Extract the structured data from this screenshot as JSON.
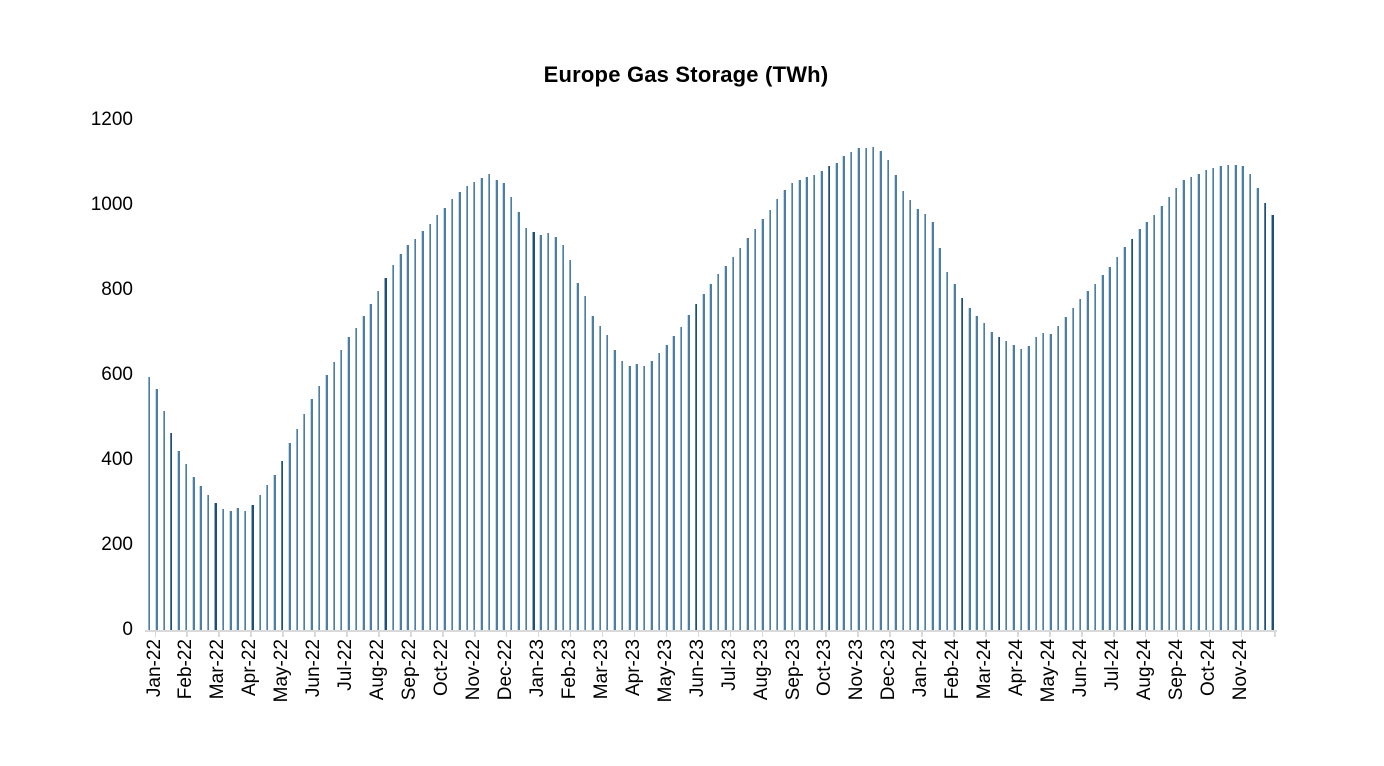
{
  "chart_data": {
    "type": "bar",
    "title": "Europe Gas Storage (TWh)",
    "unit": "TWh",
    "frequency": "weekly",
    "grid": "off",
    "legend": "none",
    "ylim": [
      0,
      1200
    ],
    "y_ticks": [
      0,
      200,
      400,
      600,
      800,
      1000,
      1200
    ],
    "x_tick_labels": [
      "Jan-22",
      "Feb-22",
      "Mar-22",
      "Apr-22",
      "May-22",
      "Jun-22",
      "Jul-22",
      "Aug-22",
      "Sep-22",
      "Oct-22",
      "Nov-22",
      "Dec-22",
      "Jan-23",
      "Feb-23",
      "Mar-23",
      "Apr-23",
      "May-23",
      "Jun-23",
      "Jul-23",
      "Aug-23",
      "Sep-23",
      "Oct-23",
      "Nov-23",
      "Dec-23",
      "Jan-24",
      "Feb-24",
      "Mar-24",
      "Apr-24",
      "May-24",
      "Jun-24",
      "Jul-24",
      "Aug-24",
      "Sep-24",
      "Oct-24",
      "Nov-24"
    ],
    "values": [
      595,
      566,
      516,
      464,
      421,
      390,
      360,
      338,
      317,
      298,
      284,
      279,
      287,
      279,
      294,
      317,
      341,
      365,
      398,
      440,
      473,
      509,
      544,
      573,
      601,
      630,
      660,
      689,
      711,
      739,
      768,
      798,
      829,
      858,
      884,
      905,
      921,
      938,
      956,
      977,
      994,
      1015,
      1030,
      1044,
      1054,
      1063,
      1072,
      1060,
      1051,
      1018,
      983,
      945,
      937,
      930,
      934,
      924,
      907,
      871,
      817,
      786,
      740,
      716,
      695,
      660,
      632,
      622,
      627,
      622,
      632,
      651,
      670,
      691,
      712,
      742,
      766,
      790,
      813,
      838,
      857,
      878,
      899,
      923,
      944,
      968,
      989,
      1015,
      1036,
      1051,
      1060,
      1067,
      1071,
      1081,
      1091,
      1099,
      1115,
      1124,
      1133,
      1135,
      1137,
      1127,
      1107,
      1070,
      1032,
      1011,
      990,
      980,
      961,
      898,
      843,
      814,
      782,
      758,
      740,
      723,
      701,
      690,
      679,
      671,
      661,
      669,
      690,
      699,
      697,
      715,
      736,
      758,
      780,
      798,
      815,
      835,
      855,
      878,
      902,
      921,
      944,
      961,
      977,
      997,
      1020,
      1041,
      1058,
      1065,
      1072,
      1082,
      1087,
      1091,
      1093,
      1095,
      1091,
      1072,
      1041,
      1004,
      977
    ],
    "emphasized_indices": [
      3,
      9,
      14,
      18,
      32,
      52,
      74,
      92,
      110,
      115,
      133,
      151,
      152
    ],
    "colors": {
      "bar": "#4d7ea3",
      "bar_highlight_edge": "#c9d9e6",
      "bar_dark": "#1f4e76",
      "bar_dark_edge": "#8fafc6",
      "axis_line": "#d9d9d9",
      "text": "#000000",
      "background": "#ffffff"
    }
  }
}
